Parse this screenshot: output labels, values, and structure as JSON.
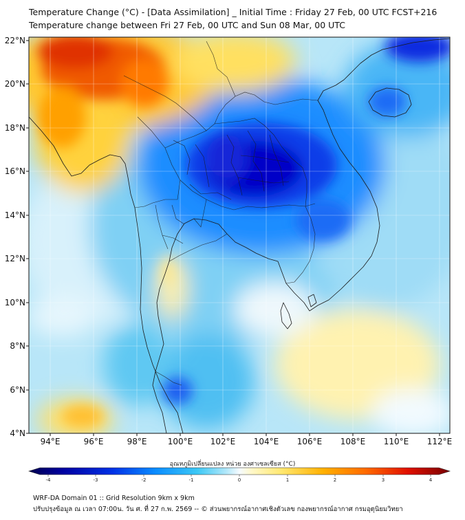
{
  "title": {
    "line1": "Temperature Change (°C) - [Data Assimilation] _ Initial Time : Friday 27 Feb, 00 UTC FCST+216",
    "line2": "Temperature change between Fri 27 Feb, 00 UTC and Sun 08 Mar, 00 UTC"
  },
  "axes": {
    "lat_labels": [
      "22°N",
      "20°N",
      "18°N",
      "16°N",
      "14°N",
      "12°N",
      "10°N",
      "8°N",
      "6°N",
      "4°N"
    ],
    "lon_labels": [
      "94°E",
      "96°E",
      "98°E",
      "100°E",
      "102°E",
      "104°E",
      "106°E",
      "108°E",
      "110°E",
      "112°E"
    ],
    "lat_range": [
      4,
      22
    ],
    "lon_range": [
      93.0,
      112.5
    ]
  },
  "colorbar": {
    "title": "อุณหภูมิเปลี่ยนแปลง หน่วย องศาเซลเซียส (°C)",
    "ticks": [
      "-4",
      "-3",
      "-2",
      "-1",
      "0",
      "1",
      "2",
      "3",
      "4"
    ],
    "range": [
      -4,
      4
    ]
  },
  "footer": {
    "line1": "WRF-DA Domain 01 :: Grid Resolution 9km x 9km",
    "line2": "ปรับปรุงข้อมูล ณ เวลา 07:00น. วัน ศ. ที่ 27 ก.พ. 2569 -- © ส่วนพยากรณ์อากาศเชิงตัวเลข กองพยากรณ์อากาศ กรมอุตุนิยมวิทยา"
  },
  "colors": {
    "very_cold": "#0000c8",
    "cold": "#1e78ff",
    "cool": "#3cbcf5",
    "light_cool": "#aee3f7",
    "neutral": "#eaf7ff",
    "warm_light": "#fff4a8",
    "warm": "#ffc21a",
    "hot": "#f03a00",
    "border": "#1a1a1a"
  }
}
